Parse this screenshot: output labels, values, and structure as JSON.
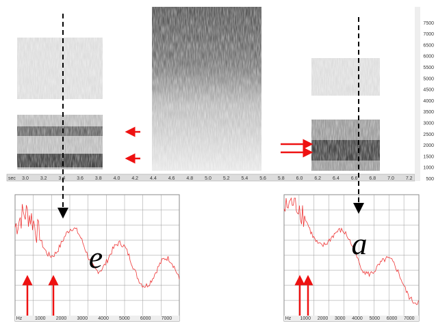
{
  "spectrogram": {
    "time_unit": "sec",
    "time_ticks": [
      "3.0",
      "3.2",
      "3.4",
      "3.6",
      "3.8",
      "4.0",
      "4.2",
      "4.4",
      "4.6",
      "4.8",
      "5.0",
      "5.2",
      "5.4",
      "5.6",
      "5.8",
      "6.0",
      "6.2",
      "6.4",
      "6.6",
      "6.8",
      "7.0",
      "7.2"
    ],
    "freq_ticks": [
      "500",
      "1000",
      "1500",
      "2000",
      "2500",
      "3000",
      "3500",
      "4000",
      "4500",
      "5000",
      "5500",
      "6000",
      "6500",
      "7000",
      "7500"
    ]
  },
  "spectra": [
    {
      "vowel": "e",
      "axis_labels": [
        "Hz",
        "1000",
        "2000",
        "3000",
        "4000",
        "5000",
        "6000",
        "7000"
      ]
    },
    {
      "vowel": "a",
      "axis_labels": [
        "Hz",
        "1000",
        "2000",
        "3000",
        "4000",
        "5000",
        "6000",
        "7000"
      ]
    }
  ]
}
